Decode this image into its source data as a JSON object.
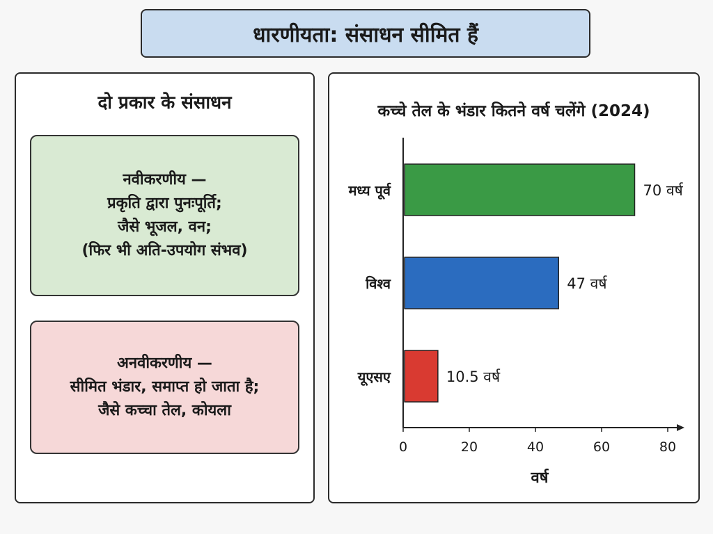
{
  "header": {
    "title": "धारणीयता: संसाधन सीमित हैं"
  },
  "left_panel": {
    "heading": "दो प्रकार के संसाधन",
    "renewable": {
      "lines": [
        "नवीकरणीय —",
        "प्रकृति द्वारा पुनःपूर्ति;",
        "जैसे भूजल, वन;",
        "(फिर भी अति-उपयोग संभव)"
      ],
      "bg_color": "#d9ead3"
    },
    "nonrenewable": {
      "lines": [
        "अनवीकरणीय —",
        "सीमित भंडार, समाप्त हो जाता है;",
        "जैसे कच्चा तेल, कोयला"
      ],
      "bg_color": "#f6d8d8"
    }
  },
  "chart_data": {
    "type": "bar",
    "orientation": "horizontal",
    "title": "कच्चे तेल के भंडार कितने वर्ष चलेंगे (2024)",
    "categories": [
      "मध्य पूर्व",
      "विश्व",
      "यूएसए"
    ],
    "values": [
      70,
      47,
      10.5
    ],
    "value_labels": [
      "70 वर्ष",
      "47 वर्ष",
      "10.5 वर्ष"
    ],
    "colors": [
      "#3a9a45",
      "#2b6cbf",
      "#d93a31"
    ],
    "xlabel": "वर्ष",
    "ylabel": "",
    "xlim": [
      0,
      80
    ],
    "xticks": [
      "0",
      "20",
      "40",
      "60",
      "80"
    ],
    "grid": false
  }
}
